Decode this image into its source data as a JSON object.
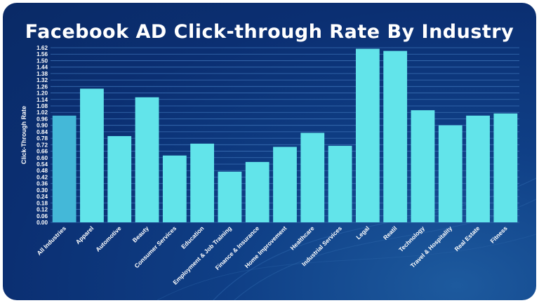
{
  "chart_data": {
    "type": "bar",
    "title": "Facebook AD Click-through Rate By Industry",
    "xlabel": "",
    "ylabel": "Click-Through Rate",
    "ylim": [
      0,
      1.62
    ],
    "yticks": [
      "0.00",
      "0.06",
      "0.12",
      "0.18",
      "0.24",
      "0.30",
      "0.36",
      "0.42",
      "0.48",
      "0.54",
      "0.60",
      "0.66",
      "0.72",
      "0.78",
      "0.84",
      "0.90",
      "0.96",
      "1.02",
      "1.08",
      "1.14",
      "1.20",
      "1.26",
      "1.32",
      "1.38",
      "1.44",
      "1.50",
      "1.56",
      "1.62"
    ],
    "grid": true,
    "categories": [
      "All Industries",
      "Apparel",
      "Automotive",
      "Beauty",
      "Consumer Services",
      "Education",
      "Employment & Job Training",
      "Finance & Insurance",
      "Home Improvement",
      "Healthcare",
      "Industrial Services",
      "Legal",
      "Reatil",
      "Technology",
      "Travel & Hospitality",
      "Real Estate",
      "Fitness"
    ],
    "values": [
      0.99,
      1.24,
      0.8,
      1.16,
      0.62,
      0.73,
      0.47,
      0.56,
      0.7,
      0.83,
      0.71,
      1.61,
      1.59,
      1.04,
      0.9,
      0.99,
      1.01
    ],
    "colors": {
      "highlight": "#44b8d8",
      "bar": "#62e4ea",
      "gridline": "#3a6fb4"
    },
    "highlight_index": 0
  }
}
